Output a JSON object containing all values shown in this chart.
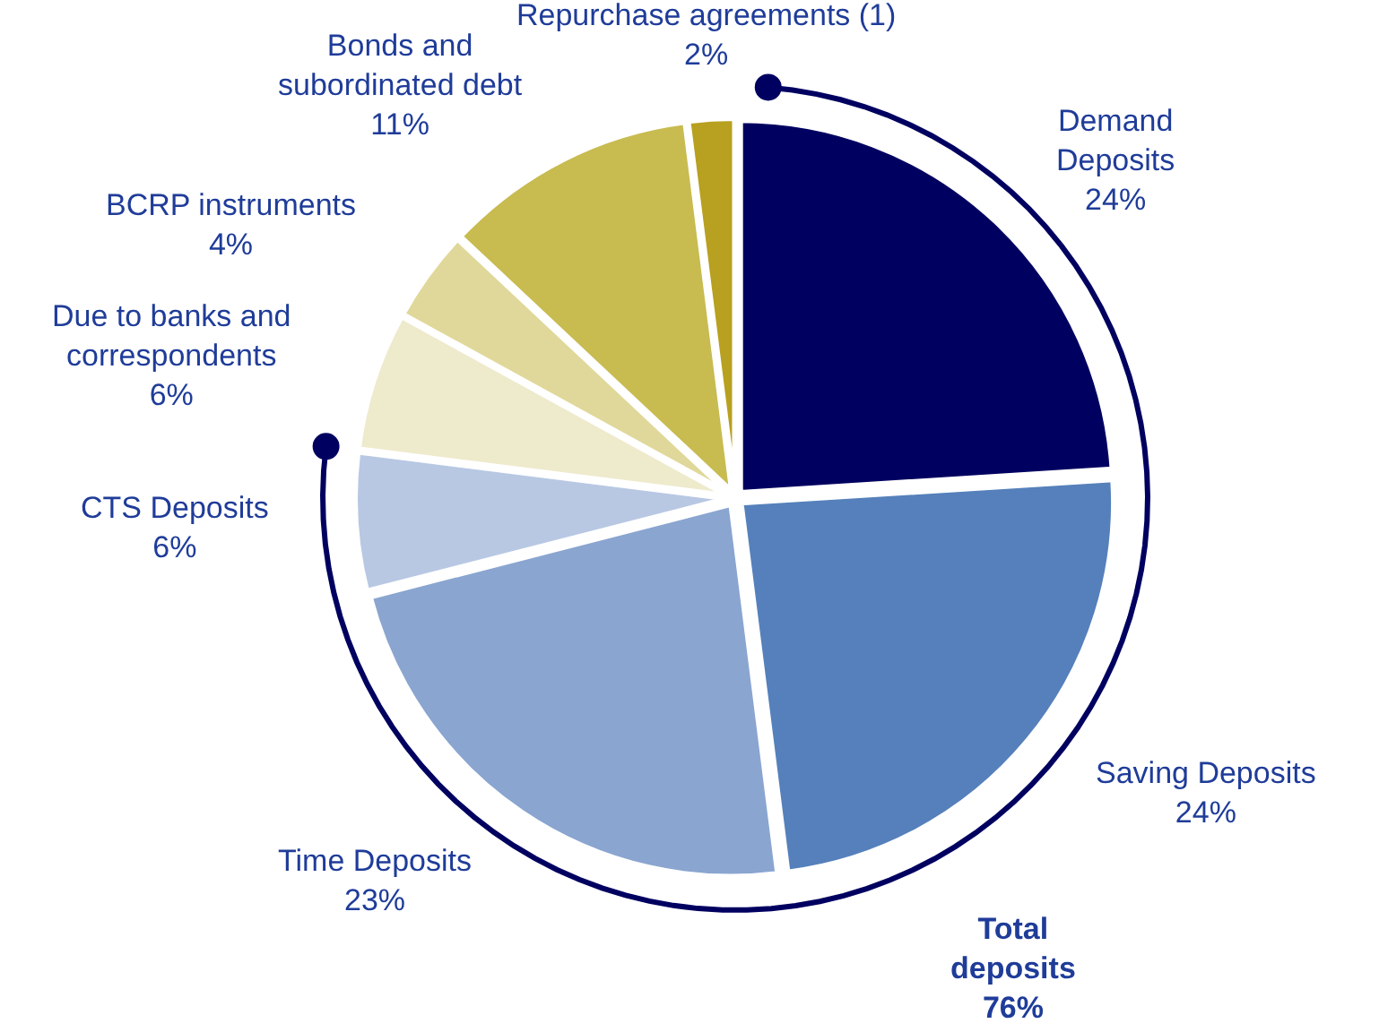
{
  "chart_data": {
    "type": "pie",
    "categories": [
      "Demand\nDeposits",
      "Saving Deposits",
      "Time Deposits",
      "CTS Deposits",
      "Due to banks and\ncorrespondents",
      "BCRP instruments",
      "Bonds and\nsubordinated debt",
      "Repurchase agreements (1)"
    ],
    "values": [
      24,
      24,
      23,
      6,
      6,
      4,
      11,
      2
    ],
    "value_labels": [
      "24%",
      "24%",
      "23%",
      "6%",
      "6%",
      "4%",
      "11%",
      "2%"
    ],
    "colors": [
      "#000060",
      "#5580bb",
      "#8aa5d0",
      "#b8c8e3",
      "#eeeacc",
      "#e0d89a",
      "#c8bb50",
      "#b8a020"
    ],
    "annotations": [
      "Total\ndeposits\n76%"
    ],
    "legend": false
  }
}
